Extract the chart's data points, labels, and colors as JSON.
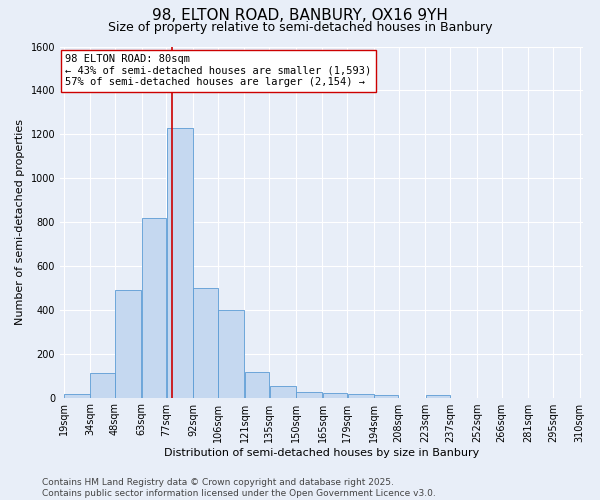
{
  "title": "98, ELTON ROAD, BANBURY, OX16 9YH",
  "subtitle": "Size of property relative to semi-detached houses in Banbury",
  "xlabel": "Distribution of semi-detached houses by size in Banbury",
  "ylabel": "Number of semi-detached properties",
  "bin_edges": [
    19,
    34,
    48,
    63,
    77,
    92,
    106,
    121,
    135,
    150,
    165,
    179,
    194,
    208,
    223,
    237,
    252,
    266,
    281,
    295,
    310
  ],
  "bar_heights": [
    15,
    110,
    490,
    820,
    1230,
    500,
    400,
    115,
    55,
    25,
    20,
    15,
    10,
    0,
    10,
    0,
    0,
    0,
    0,
    0
  ],
  "bin_labels": [
    "19sqm",
    "34sqm",
    "48sqm",
    "63sqm",
    "77sqm",
    "92sqm",
    "106sqm",
    "121sqm",
    "135sqm",
    "150sqm",
    "165sqm",
    "179sqm",
    "194sqm",
    "208sqm",
    "223sqm",
    "237sqm",
    "252sqm",
    "266sqm",
    "281sqm",
    "295sqm",
    "310sqm"
  ],
  "bar_color": "#c5d8f0",
  "bar_edge_color": "#5b9bd5",
  "property_size": 80,
  "property_line_color": "#cc0000",
  "annotation_text": "98 ELTON ROAD: 80sqm\n← 43% of semi-detached houses are smaller (1,593)\n57% of semi-detached houses are larger (2,154) →",
  "annotation_box_color": "#ffffff",
  "annotation_box_edge": "#cc0000",
  "ylim": [
    0,
    1600
  ],
  "yticks": [
    0,
    200,
    400,
    600,
    800,
    1000,
    1200,
    1400,
    1600
  ],
  "background_color": "#e8eef8",
  "plot_bg_color": "#e8eef8",
  "grid_color": "#ffffff",
  "footer_text": "Contains HM Land Registry data © Crown copyright and database right 2025.\nContains public sector information licensed under the Open Government Licence v3.0.",
  "title_fontsize": 11,
  "subtitle_fontsize": 9,
  "xlabel_fontsize": 8,
  "ylabel_fontsize": 8,
  "tick_fontsize": 7,
  "annotation_fontsize": 7.5,
  "footer_fontsize": 6.5
}
